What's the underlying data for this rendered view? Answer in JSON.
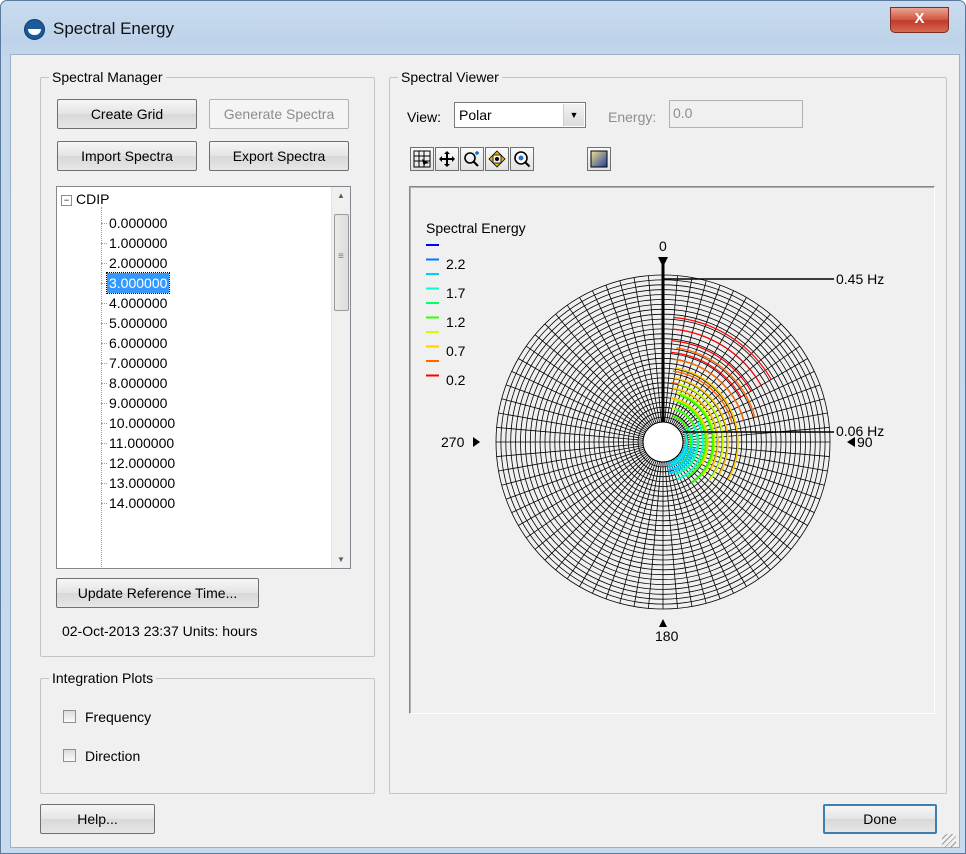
{
  "window": {
    "title": "Spectral Energy",
    "close_glyph": "X"
  },
  "spectral_manager": {
    "group_title": "Spectral Manager",
    "create_grid": "Create Grid",
    "generate_spectra": "Generate Spectra",
    "import_spectra": "Import Spectra",
    "export_spectra": "Export Spectra",
    "tree": {
      "root": "CDIP",
      "expander": "−",
      "items": [
        "0.000000",
        "1.000000",
        "2.000000",
        "3.000000",
        "4.000000",
        "5.000000",
        "6.000000",
        "7.000000",
        "8.000000",
        "9.000000",
        "10.000000",
        "11.000000",
        "12.000000",
        "13.000000",
        "14.000000"
      ],
      "selected": "3.000000"
    },
    "update_reference_time": "Update Reference Time...",
    "reference_info": "02-Oct-2013 23:37 Units: hours"
  },
  "integration_plots": {
    "group_title": "Integration Plots",
    "frequency": "Frequency",
    "direction": "Direction"
  },
  "spectral_viewer": {
    "group_title": "Spectral Viewer",
    "view_label": "View:",
    "view_value": "Polar",
    "energy_label": "Energy:",
    "energy_value": "0.0",
    "toolbar_icons": [
      "frame-icon",
      "pan-icon",
      "zoom-icon",
      "rotate-icon",
      "zoom-extents-icon",
      "color-ramp-icon"
    ]
  },
  "chart_data": {
    "type": "polar-contour",
    "title": "Spectral Energy",
    "legend": {
      "labels": [
        "2.2",
        "1.7",
        "1.2",
        "0.7",
        "0.2"
      ],
      "colors": [
        "#0000ff",
        "#0077ff",
        "#00ccff",
        "#00ffcc",
        "#00ff66",
        "#33ff00",
        "#ccff00",
        "#ffcc00",
        "#ff6600",
        "#ff0000"
      ]
    },
    "direction_labels": {
      "north": "0",
      "east": "90",
      "south": "180",
      "west": "270"
    },
    "frequency_labels": {
      "outer": "0.45 Hz",
      "inner": "0.06 Hz"
    },
    "frequency_range_hz": [
      0.06,
      0.45
    ]
  },
  "buttons": {
    "help": "Help...",
    "done": "Done"
  }
}
